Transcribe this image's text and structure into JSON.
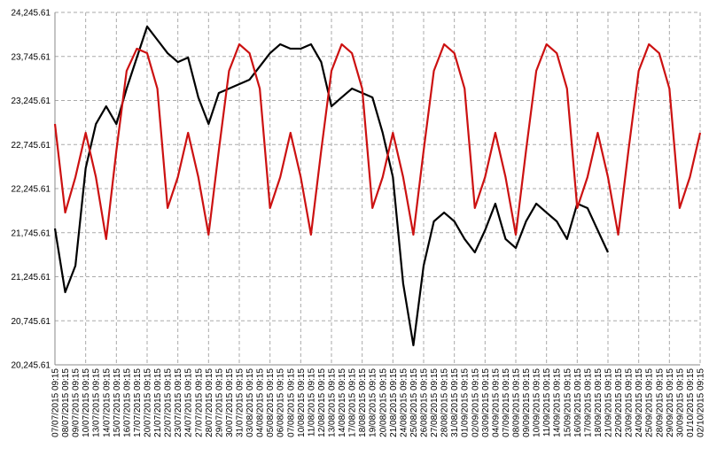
{
  "chart_data": {
    "type": "line",
    "categories": [
      "07/07/2015 09:15",
      "08/07/2015 09:15",
      "09/07/2015 09:15",
      "10/07/2015 09:15",
      "13/07/2015 09:15",
      "14/07/2015 09:15",
      "15/07/2015 09:15",
      "16/07/2015 09:15",
      "17/07/2015 09:15",
      "20/07/2015 09:15",
      "21/07/2015 09:15",
      "22/07/2015 09:15",
      "23/07/2015 09:15",
      "24/07/2015 09:15",
      "27/07/2015 09:15",
      "28/07/2015 09:15",
      "29/07/2015 09:15",
      "30/07/2015 09:15",
      "31/07/2015 09:15",
      "03/08/2015 09:15",
      "04/08/2015 09:15",
      "05/08/2015 09:15",
      "06/08/2015 09:15",
      "07/08/2015 09:15",
      "10/08/2015 09:15",
      "11/08/2015 09:15",
      "12/08/2015 09:15",
      "13/08/2015 09:15",
      "14/08/2015 09:15",
      "17/08/2015 09:15",
      "18/08/2015 09:15",
      "19/08/2015 09:15",
      "20/08/2015 09:15",
      "21/08/2015 09:15",
      "24/08/2015 09:15",
      "25/08/2015 09:15",
      "26/08/2015 09:15",
      "27/08/2015 09:15",
      "28/08/2015 09:15",
      "31/08/2015 09:15",
      "01/09/2015 09:15",
      "02/09/2015 09:15",
      "03/09/2015 09:15",
      "04/09/2015 09:15",
      "07/09/2015 09:15",
      "08/09/2015 09:15",
      "09/09/2015 09:15",
      "10/09/2015 09:15",
      "11/09/2015 09:15",
      "14/09/2015 09:15",
      "15/09/2015 09:15",
      "16/09/2015 09:15",
      "17/09/2015 09:15",
      "18/09/2015 09:15",
      "21/09/2015 09:15",
      "22/09/2015 09:15",
      "23/09/2015 09:15",
      "24/09/2015 09:15",
      "25/09/2015 09:15",
      "28/09/2015 09:15",
      "29/09/2015 09:15",
      "30/09/2015 09:15",
      "01/10/2015 09:15",
      "02/10/2015 09:15"
    ],
    "series": [
      {
        "color": "#000000",
        "values": [
          21793,
          21070,
          21371,
          22477,
          22979,
          23180,
          22979,
          23381,
          23733,
          24085,
          23934,
          23783,
          23682,
          23733,
          23281,
          22979,
          23331,
          23381,
          23432,
          23482,
          23632,
          23783,
          23884,
          23834,
          23834,
          23884,
          23682,
          23180,
          23281,
          23381,
          23331,
          23281,
          22879,
          22376,
          21170,
          20467,
          21371,
          21874,
          21974,
          21874,
          21673,
          21522,
          21773,
          22075,
          21673,
          21572,
          21874,
          22075,
          21974,
          21874,
          21673,
          22075,
          22025,
          21773,
          21522,
          null,
          null,
          null,
          null,
          null,
          null,
          null,
          null,
          null
        ]
      },
      {
        "color": "#cc1111",
        "values": [
          22979,
          21974,
          22376,
          22879,
          22376,
          21673,
          22678,
          23582,
          23834,
          23783,
          23381,
          22025,
          22376,
          22879,
          22376,
          21723,
          22678,
          23582,
          23884,
          23783,
          23381,
          22025,
          22376,
          22879,
          22376,
          21723,
          22678,
          23582,
          23884,
          23783,
          23381,
          22025,
          22376,
          22879,
          22376,
          21723,
          22678,
          23582,
          23884,
          23783,
          23381,
          22025,
          22376,
          22879,
          22376,
          21723,
          22678,
          23582,
          23884,
          23783,
          23381,
          22025,
          22376,
          22879,
          22376,
          21723,
          22678,
          23582,
          23884,
          23783,
          23381,
          22025,
          22376,
          22879
        ]
      }
    ],
    "ylim": [
      20245.61,
      24245.61
    ],
    "yticks": [
      {
        "value": 20245.61,
        "label": "20,245.61"
      },
      {
        "value": 20745.61,
        "label": "20,745.61"
      },
      {
        "value": 21245.61,
        "label": "21,245.61"
      },
      {
        "value": 21745.61,
        "label": "21,745.61"
      },
      {
        "value": 22245.61,
        "label": "22,245.61"
      },
      {
        "value": 22745.61,
        "label": "22,745.61"
      },
      {
        "value": 23245.61,
        "label": "23,245.61"
      },
      {
        "value": 23745.61,
        "label": "23,745.61"
      },
      {
        "value": 24245.61,
        "label": "24,245.61"
      }
    ],
    "grid": true
  }
}
